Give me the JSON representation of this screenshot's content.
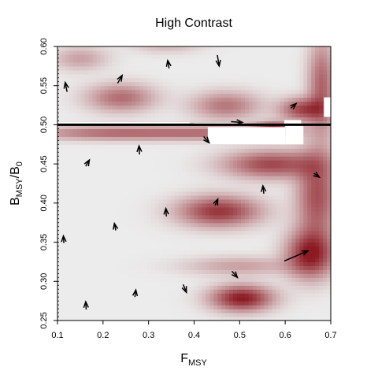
{
  "chart_data": {
    "type": "heatmap",
    "title": "High Contrast",
    "xlabel": {
      "main": "F",
      "sub": "MSY"
    },
    "ylabel": {
      "main1": "B",
      "sub1": "MSY",
      "slash": "/",
      "main2": "B",
      "sub2": "0"
    },
    "xlim": [
      0.1,
      0.7
    ],
    "ylim": [
      0.25,
      0.6
    ],
    "x_ticks": [
      0.1,
      0.2,
      0.3,
      0.4,
      0.5,
      0.6,
      0.7
    ],
    "x_tick_labels": [
      "0.1",
      "0.2",
      "0.3",
      "0.4",
      "0.5",
      "0.6",
      "0.7"
    ],
    "y_ticks": [
      0.25,
      0.3,
      0.35,
      0.4,
      0.45,
      0.5,
      0.55,
      0.6
    ],
    "y_tick_labels": [
      "0.25",
      "0.30",
      "0.35",
      "0.40",
      "0.45",
      "0.50",
      "0.55",
      "0.60"
    ],
    "reference_line_y": 0.5,
    "colors": {
      "low": "#ececec",
      "high": "#8b1a22",
      "missing": "#ffffff",
      "line": "#000000"
    },
    "blobs": [
      {
        "x": 0.505,
        "y": 0.279,
        "sx": 0.045,
        "sy": 0.011,
        "v": 1.0
      },
      {
        "x": 0.455,
        "y": 0.39,
        "sx": 0.06,
        "sy": 0.013,
        "v": 0.85
      },
      {
        "x": 0.655,
        "y": 0.335,
        "sx": 0.035,
        "sy": 0.02,
        "v": 0.95
      },
      {
        "x": 0.57,
        "y": 0.45,
        "sx": 0.07,
        "sy": 0.012,
        "v": 0.75
      },
      {
        "x": 0.24,
        "y": 0.535,
        "sx": 0.05,
        "sy": 0.012,
        "v": 0.55
      },
      {
        "x": 0.47,
        "y": 0.525,
        "sx": 0.05,
        "sy": 0.012,
        "v": 0.5
      },
      {
        "x": 0.67,
        "y": 0.41,
        "sx": 0.03,
        "sy": 0.04,
        "v": 0.7
      },
      {
        "x": 0.64,
        "y": 0.52,
        "sx": 0.035,
        "sy": 0.01,
        "v": 0.75
      },
      {
        "x": 0.15,
        "y": 0.585,
        "sx": 0.04,
        "sy": 0.01,
        "v": 0.3
      },
      {
        "x": 0.34,
        "y": 0.605,
        "sx": 0.05,
        "sy": 0.008,
        "v": 0.25
      },
      {
        "x": 0.68,
        "y": 0.55,
        "sx": 0.02,
        "sy": 0.04,
        "v": 0.6
      },
      {
        "x": 0.5,
        "y": 0.32,
        "sx": 0.08,
        "sy": 0.008,
        "v": 0.3
      }
    ],
    "stripes": [
      {
        "x": 0.22,
        "y": 0.49,
        "sx": 0.12,
        "sy": 0.006,
        "v": 0.55
      },
      {
        "x": 0.45,
        "y": 0.49,
        "sx": 0.1,
        "sy": 0.006,
        "v": 0.45
      },
      {
        "x": 0.575,
        "y": 0.495,
        "sx": 0.03,
        "sy": 0.006,
        "v": 0.85
      }
    ],
    "missing_regions": [
      {
        "x0": 0.1,
        "x1": 0.39,
        "y0": 0.4995,
        "y1": 0.5035
      },
      {
        "x0": 0.4,
        "x1": 0.51,
        "y0": 0.4995,
        "y1": 0.5025
      },
      {
        "x0": 0.43,
        "x1": 0.6,
        "y0": 0.475,
        "y1": 0.497
      },
      {
        "x0": 0.6,
        "x1": 0.64,
        "y0": 0.475,
        "y1": 0.5
      },
      {
        "x0": 0.598,
        "x1": 0.635,
        "y0": 0.501,
        "y1": 0.506
      },
      {
        "x0": 0.685,
        "x1": 0.7,
        "y0": 0.51,
        "y1": 0.535
      }
    ],
    "arrows": [
      {
        "x": 0.121,
        "y": 0.542,
        "dx": -0.004,
        "dy": 0.012
      },
      {
        "x": 0.232,
        "y": 0.553,
        "dx": 0.01,
        "dy": 0.01
      },
      {
        "x": 0.345,
        "y": 0.572,
        "dx": -0.003,
        "dy": 0.01
      },
      {
        "x": 0.451,
        "y": 0.589,
        "dx": 0.004,
        "dy": -0.014
      },
      {
        "x": 0.612,
        "y": 0.521,
        "dx": 0.012,
        "dy": 0.006
      },
      {
        "x": 0.481,
        "y": 0.504,
        "dx": 0.025,
        "dy": -0.001
      },
      {
        "x": 0.162,
        "y": 0.447,
        "dx": 0.008,
        "dy": 0.008
      },
      {
        "x": 0.28,
        "y": 0.462,
        "dx": -0.001,
        "dy": 0.011
      },
      {
        "x": 0.421,
        "y": 0.485,
        "dx": 0.012,
        "dy": -0.008
      },
      {
        "x": 0.663,
        "y": 0.438,
        "dx": 0.012,
        "dy": -0.005
      },
      {
        "x": 0.553,
        "y": 0.412,
        "dx": -0.002,
        "dy": 0.01
      },
      {
        "x": 0.446,
        "y": 0.397,
        "dx": 0.006,
        "dy": 0.008
      },
      {
        "x": 0.339,
        "y": 0.383,
        "dx": -0.001,
        "dy": 0.01
      },
      {
        "x": 0.228,
        "y": 0.365,
        "dx": -0.003,
        "dy": 0.009
      },
      {
        "x": 0.114,
        "y": 0.349,
        "dx": -0.001,
        "dy": 0.009
      },
      {
        "x": 0.598,
        "y": 0.326,
        "dx": 0.052,
        "dy": 0.013
      },
      {
        "x": 0.483,
        "y": 0.313,
        "dx": 0.012,
        "dy": -0.008
      },
      {
        "x": 0.376,
        "y": 0.296,
        "dx": 0.007,
        "dy": -0.01
      },
      {
        "x": 0.27,
        "y": 0.28,
        "dx": 0.002,
        "dy": 0.009
      },
      {
        "x": 0.163,
        "y": 0.264,
        "dx": -0.001,
        "dy": 0.01
      }
    ]
  }
}
